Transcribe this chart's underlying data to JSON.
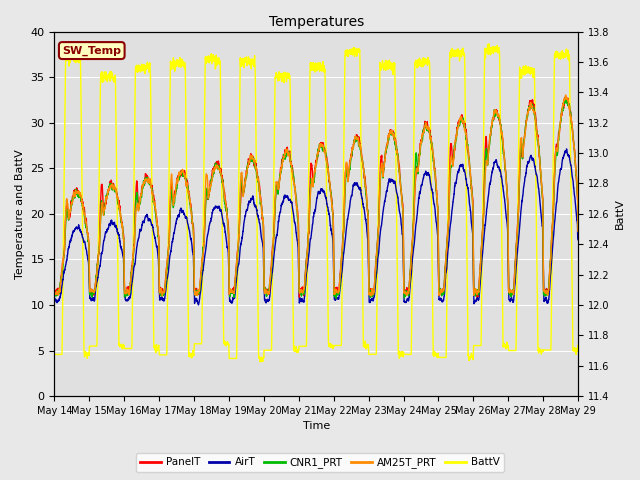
{
  "title": "Temperatures",
  "xlabel": "Time",
  "ylabel_left": "Temperature and BattV",
  "ylabel_right": "BattV",
  "ylim_left": [
    0,
    40
  ],
  "ylim_right": [
    11.4,
    13.8
  ],
  "x_tick_labels": [
    "May 14",
    "May 15",
    "May 16",
    "May 17",
    "May 18",
    "May 19",
    "May 20",
    "May 21",
    "May 22",
    "May 23",
    "May 24",
    "May 25",
    "May 26",
    "May 27",
    "May 28",
    "May 29"
  ],
  "annotation_label": "SW_Temp",
  "annotation_color": "#8B0000",
  "annotation_bg": "#FFFFC0",
  "legend_entries": [
    "PanelT",
    "AirT",
    "CNR1_PRT",
    "AM25T_PRT",
    "BattV"
  ],
  "legend_colors": [
    "#FF0000",
    "#0000AA",
    "#00BB00",
    "#FF8C00",
    "#FFFF00"
  ],
  "plot_bg": "#E0E0E0",
  "grid_color": "#FFFFFF",
  "fig_bg": "#E8E8E8",
  "line_width": 1.0
}
